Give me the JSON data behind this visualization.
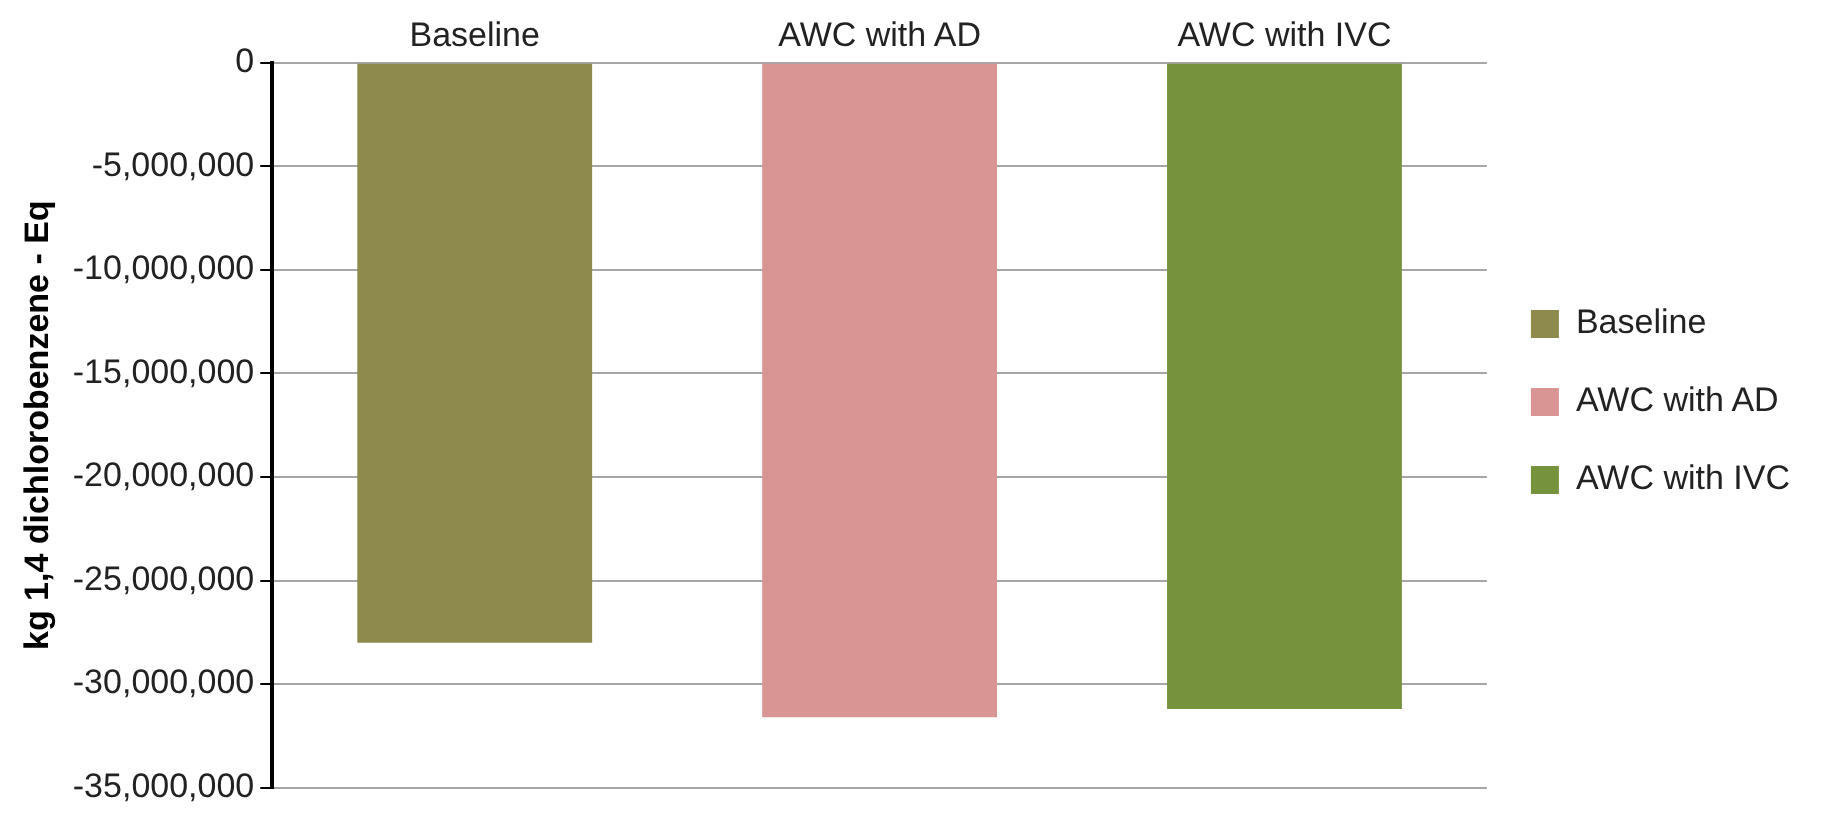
{
  "chart_data": {
    "type": "bar",
    "ylabel": "kg 1,4 dichlorobenzene - Eq",
    "categories": [
      "Baseline",
      "AWC with AD",
      "AWC with IVC"
    ],
    "series": [
      {
        "name": "Baseline",
        "color": "#8e8a4e",
        "values": [
          -28000000,
          null,
          null
        ]
      },
      {
        "name": "AWC with AD",
        "color": "#d99594",
        "values": [
          null,
          -31600000,
          null
        ]
      },
      {
        "name": "AWC with IVC",
        "color": "#76923c",
        "values": [
          null,
          null,
          -31200000
        ]
      }
    ],
    "ylim": [
      -35000000,
      0
    ],
    "yticks": [
      {
        "value": 0,
        "label": "0"
      },
      {
        "value": -5000000,
        "label": "-5,000,000"
      },
      {
        "value": -10000000,
        "label": "-10,000,000"
      },
      {
        "value": -15000000,
        "label": "-15,000,000"
      },
      {
        "value": -20000000,
        "label": "-20,000,000"
      },
      {
        "value": -25000000,
        "label": "-25,000,000"
      },
      {
        "value": -30000000,
        "label": "-30,000,000"
      },
      {
        "value": -35000000,
        "label": "-35,000,000"
      }
    ],
    "grid": "y",
    "legend": "right"
  }
}
